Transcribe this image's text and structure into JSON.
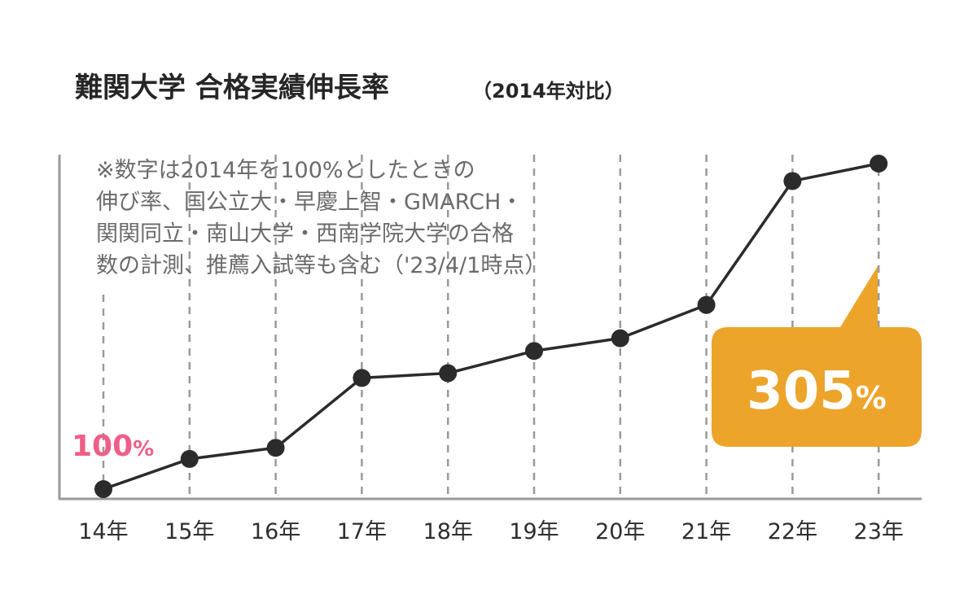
{
  "title": "難関大学 合格実績伸長率",
  "subtitle": "（2014年対比）",
  "note_lines": [
    "※数字は2014年を100%としたときの",
    "伸び率、国公立大・早慶上智・GMARCH・",
    "関関同立・南山大学・西南学院大学の合格",
    "数の計測、推薦入試等も含む（'23/4/1時点）"
  ],
  "colors": {
    "line": "#2b2b2b",
    "grid": "#9a9a9a",
    "axis": "#9a9a9a",
    "start_label": "#ee5f87",
    "callout": "#eda42b",
    "callout_text": "#ffffff"
  },
  "chart_data": {
    "type": "line",
    "categories": [
      "14年",
      "15年",
      "16年",
      "17年",
      "18年",
      "19年",
      "20年",
      "21年",
      "22年",
      "23年"
    ],
    "values": [
      100,
      119,
      126,
      170,
      173,
      187,
      195,
      216,
      294,
      305
    ],
    "ylim": [
      90,
      340
    ],
    "grid": "vertical-dashed",
    "annotations": [
      {
        "index": 0,
        "text": "100",
        "unit": "%"
      },
      {
        "index": 9,
        "text": "305",
        "unit": "%"
      }
    ]
  }
}
